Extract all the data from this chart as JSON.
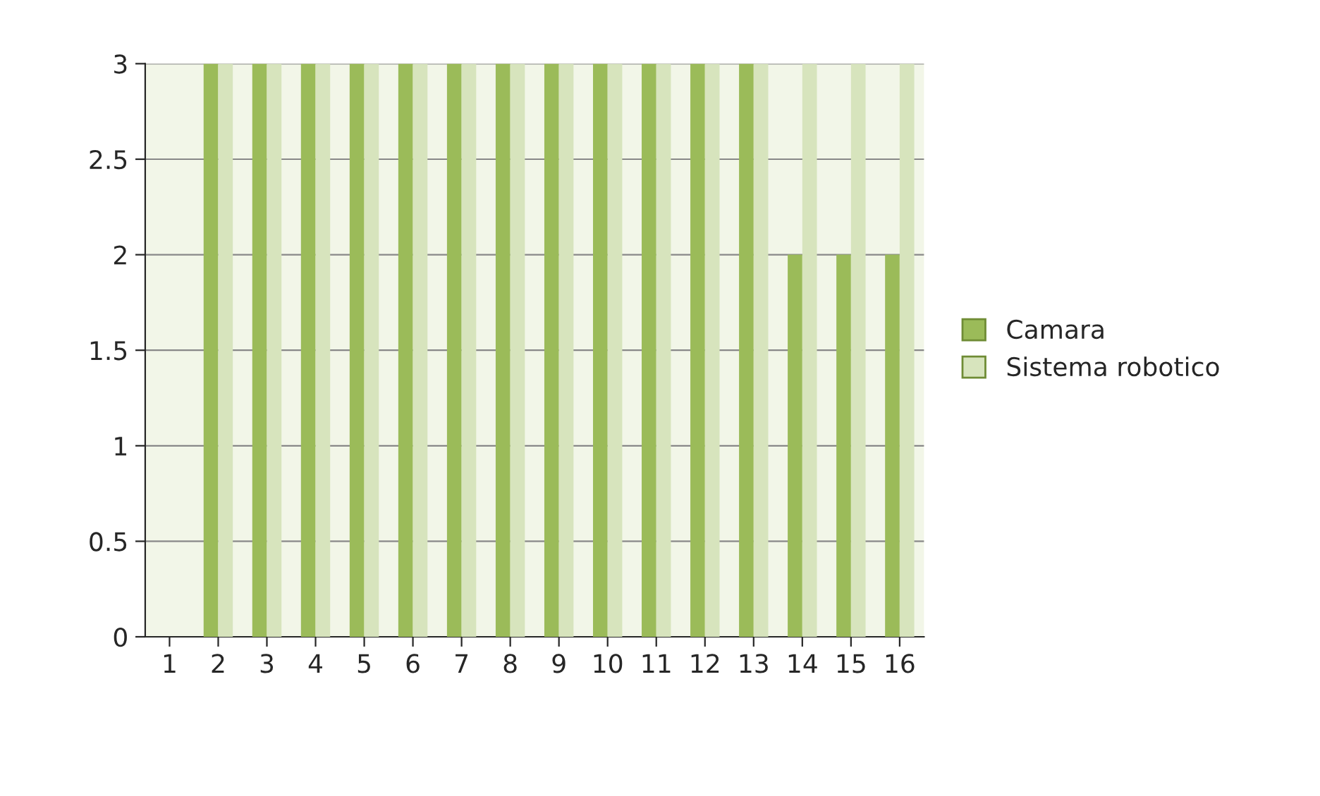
{
  "chart_data": {
    "type": "bar",
    "categories": [
      "1",
      "2",
      "3",
      "4",
      "5",
      "6",
      "7",
      "8",
      "9",
      "10",
      "11",
      "12",
      "13",
      "14",
      "15",
      "16"
    ],
    "series": [
      {
        "name": "Camara",
        "color": "#9bbb59",
        "values": [
          0,
          3,
          3,
          3,
          3,
          3,
          3,
          3,
          3,
          3,
          3,
          3,
          3,
          2,
          2,
          2
        ]
      },
      {
        "name": "Sistema robotico",
        "color": "#d7e4bd",
        "values": [
          0,
          3,
          3,
          3,
          3,
          3,
          3,
          3,
          3,
          3,
          3,
          3,
          3,
          3,
          3,
          3
        ]
      }
    ],
    "ylim": [
      0,
      3
    ],
    "yticks": [
      0,
      0.5,
      1,
      1.5,
      2,
      2.5,
      3
    ],
    "grid": "y",
    "legend": "right"
  }
}
